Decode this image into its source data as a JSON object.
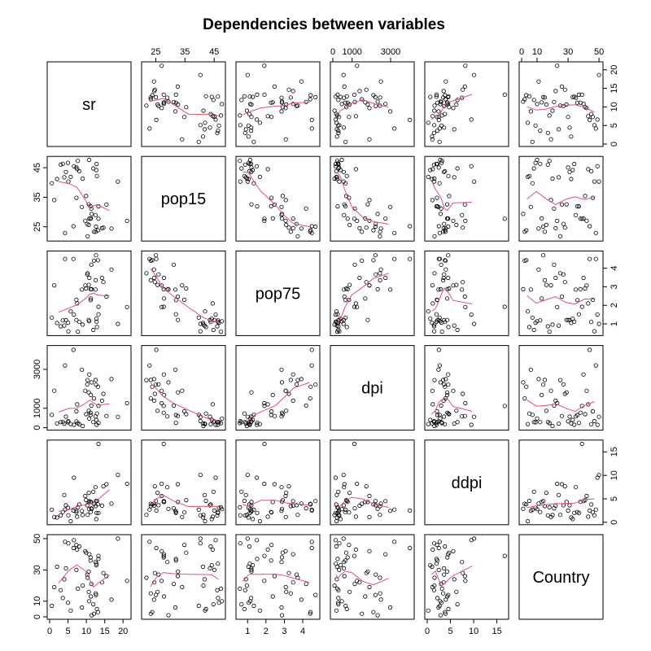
{
  "chart_data": {
    "type": "scatter",
    "title": "Dependencies between variables",
    "variables": [
      {
        "name": "sr",
        "range": [
          0,
          21.5
        ],
        "ticks": [
          0,
          5,
          10,
          15,
          20
        ]
      },
      {
        "name": "pop15",
        "range": [
          21,
          48
        ],
        "ticks": [
          25,
          35,
          45
        ]
      },
      {
        "name": "pop75",
        "range": [
          0.5,
          4.8
        ],
        "ticks": [
          1,
          2,
          3,
          4
        ]
      },
      {
        "name": "dpi",
        "range": [
          0,
          4100
        ],
        "ticks": [
          0,
          1000,
          3000
        ],
        "tick_labels": [
          "0",
          "1000",
          "3000"
        ]
      },
      {
        "name": "ddpi",
        "range": [
          0,
          17
        ],
        "ticks": [
          0,
          5,
          10,
          15
        ]
      },
      {
        "name": "Country",
        "range": [
          0,
          51
        ],
        "ticks": [
          0,
          10,
          30,
          50
        ],
        "top_ticks": [
          0,
          10,
          30,
          50
        ],
        "side_ticks": [
          0,
          10,
          30,
          50
        ]
      }
    ],
    "smoother_color": "#DF536B",
    "point_color": "#000000",
    "grid": false,
    "records": [
      [
        11.43,
        29.35,
        2.87,
        2329.68,
        2.87,
        1
      ],
      [
        12.07,
        23.32,
        4.41,
        1507.99,
        3.93,
        2
      ],
      [
        13.17,
        23.8,
        4.43,
        2108.47,
        3.82,
        3
      ],
      [
        5.75,
        41.89,
        1.67,
        189.13,
        0.22,
        4
      ],
      [
        12.88,
        42.19,
        0.83,
        728.47,
        4.56,
        5
      ],
      [
        8.79,
        31.72,
        2.85,
        2982.88,
        2.43,
        6
      ],
      [
        0.6,
        39.74,
        1.34,
        662.86,
        2.67,
        7
      ],
      [
        11.9,
        44.75,
        0.67,
        289.52,
        6.51,
        8
      ],
      [
        4.98,
        46.64,
        1.06,
        276.65,
        3.08,
        9
      ],
      [
        10.78,
        47.64,
        1.14,
        471.24,
        2.8,
        10
      ],
      [
        16.85,
        24.42,
        3.93,
        2496.53,
        3.99,
        11
      ],
      [
        3.59,
        46.31,
        1.19,
        287.77,
        2.19,
        12
      ],
      [
        11.24,
        27.84,
        2.37,
        1681.25,
        4.32,
        13
      ],
      [
        12.64,
        25.06,
        4.7,
        2213.82,
        4.52,
        14
      ],
      [
        12.55,
        23.31,
        3.35,
        2457.12,
        3.44,
        15
      ],
      [
        10.67,
        25.62,
        3.1,
        870.85,
        6.28,
        16
      ],
      [
        3.01,
        46.05,
        0.87,
        289.71,
        1.48,
        17
      ],
      [
        7.7,
        47.32,
        0.58,
        232.44,
        3.19,
        18
      ],
      [
        1.27,
        34.03,
        3.08,
        1900.1,
        1.12,
        19
      ],
      [
        9.0,
        41.31,
        0.96,
        88.94,
        1.54,
        20
      ],
      [
        11.34,
        31.16,
        4.19,
        1139.95,
        2.99,
        21
      ],
      [
        14.28,
        24.52,
        3.48,
        1390.0,
        3.54,
        22
      ],
      [
        21.1,
        27.01,
        1.91,
        1257.28,
        8.21,
        23
      ],
      [
        3.98,
        41.74,
        0.91,
        207.68,
        5.81,
        24
      ],
      [
        10.35,
        21.8,
        3.73,
        2449.39,
        1.57,
        25
      ],
      [
        15.48,
        32.54,
        2.47,
        601.05,
        8.12,
        26
      ],
      [
        10.25,
        25.95,
        3.67,
        2231.03,
        3.62,
        27
      ],
      [
        14.65,
        24.71,
        3.25,
        1740.7,
        7.66,
        28
      ],
      [
        10.67,
        32.61,
        1.21,
        1813.93,
        4.32,
        29
      ],
      [
        7.3,
        45.04,
        1.21,
        325.54,
        2.48,
        30
      ],
      [
        4.44,
        43.56,
        1.2,
        568.56,
        3.61,
        31
      ],
      [
        2.02,
        41.18,
        1.05,
        220.56,
        1.03,
        32
      ],
      [
        12.7,
        44.19,
        1.28,
        400.06,
        0.67,
        33
      ],
      [
        12.78,
        46.26,
        1.12,
        152.01,
        2.0,
        34
      ],
      [
        12.49,
        28.96,
        2.85,
        579.51,
        7.48,
        35
      ],
      [
        11.14,
        31.94,
        2.28,
        651.11,
        2.19,
        36
      ],
      [
        13.3,
        31.92,
        1.52,
        250.96,
        2.0,
        37
      ],
      [
        11.14,
        27.74,
        2.87,
        768.79,
        4.35,
        38
      ],
      [
        13.3,
        27.73,
        1.92,
        1121.9,
        16.71,
        39
      ],
      [
        10.81,
        27.79,
        3.48,
        2734.68,
        4.51,
        40
      ],
      [
        9.94,
        35.42,
        2.91,
        695.31,
        4.71,
        41
      ],
      [
        9.7,
        27.04,
        3.07,
        1900.0,
        5.6,
        42
      ],
      [
        7.5,
        44.5,
        2.1,
        1200.0,
        1.2,
        43
      ],
      [
        6.5,
        25.2,
        4.5,
        4002.0,
        2.5,
        44
      ],
      [
        8.1,
        43.8,
        1.1,
        180.0,
        3.8,
        45
      ],
      [
        7.3,
        34.8,
        2.3,
        840.0,
        2.1,
        46
      ],
      [
        5.1,
        40.3,
        0.6,
        340.0,
        1.5,
        47
      ],
      [
        4.2,
        22.9,
        4.5,
        3200.0,
        2.7,
        48
      ],
      [
        6.6,
        45.5,
        1.5,
        150.0,
        9.5,
        49
      ],
      [
        18.6,
        40.3,
        1.0,
        560.0,
        10.1,
        50
      ]
    ]
  }
}
